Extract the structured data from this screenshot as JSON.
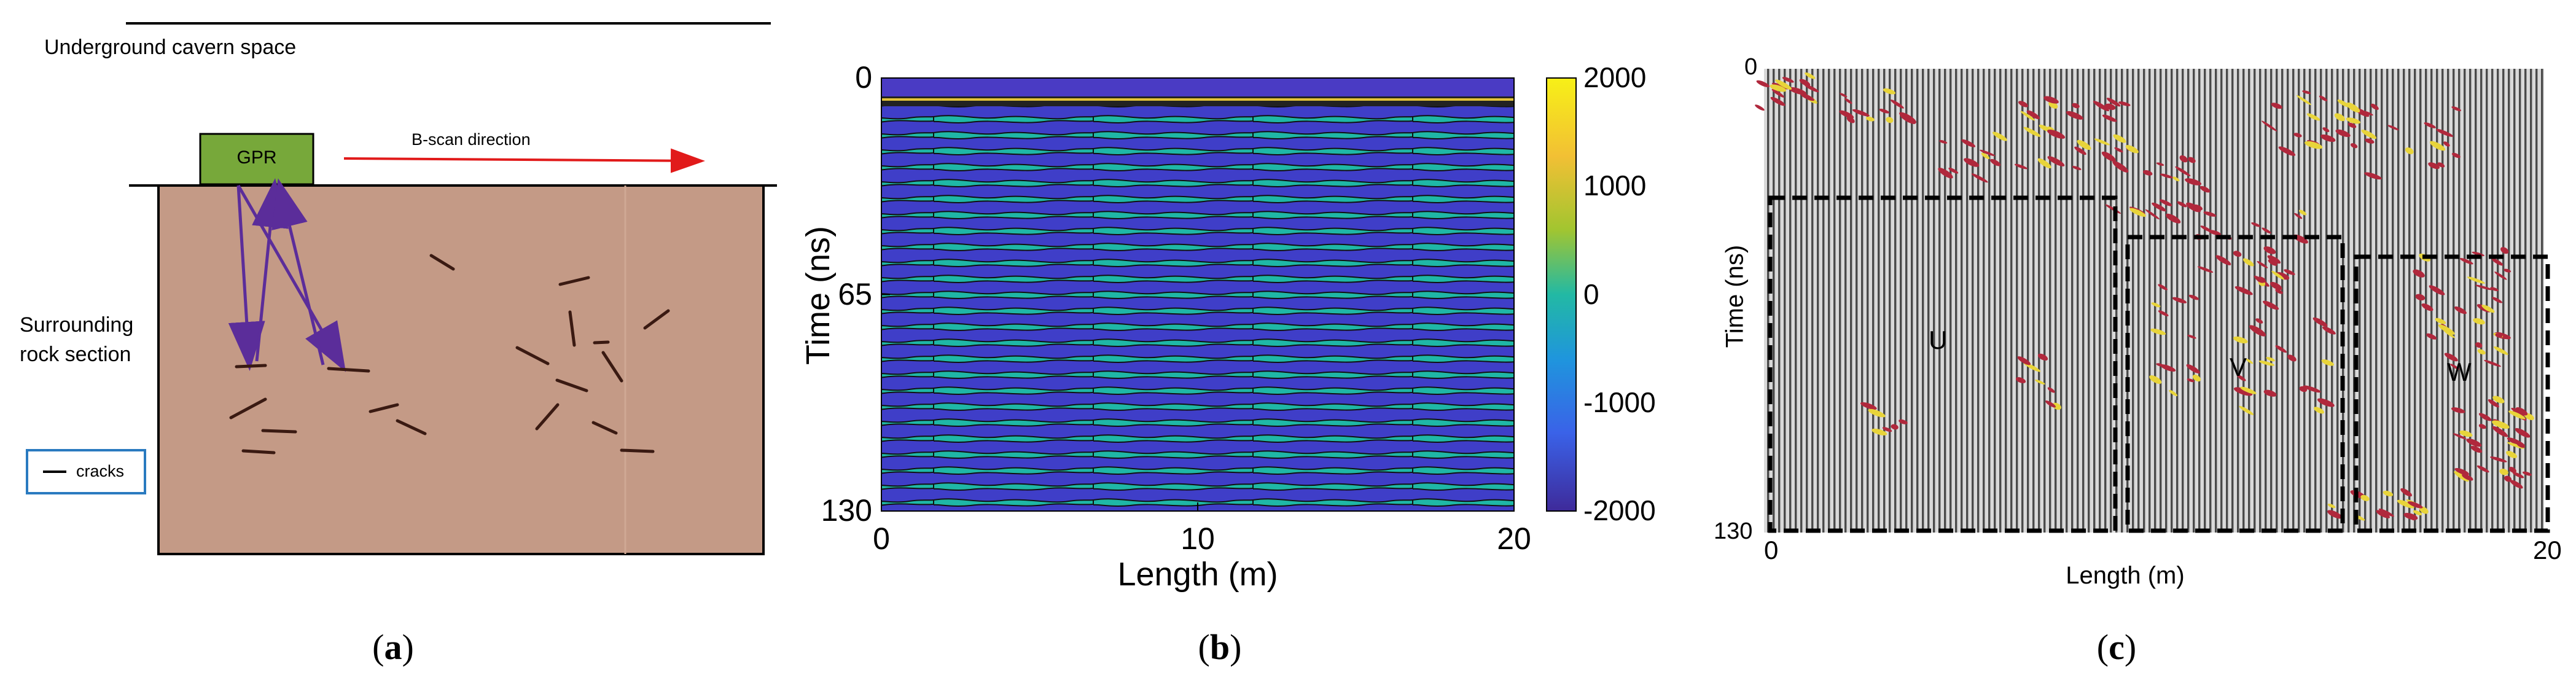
{
  "panel_a": {
    "cavern_label": "Underground cavern space",
    "gpr_label": "GPR",
    "scan_label": "B-scan direction",
    "rock_label_line1": "Surrounding",
    "rock_label_line2": "rock section",
    "legend_label": "cracks",
    "caption_letter": "a",
    "colors": {
      "rock": "#c49a86",
      "gpr_box": "#77a83a",
      "arrow": "#e11a1a",
      "rays": "#5b2d9a",
      "crack": "#3a1a12",
      "legend_border": "#2a7ac0"
    }
  },
  "panel_b": {
    "ylabel": "Time (ns)",
    "xlabel": "Length (m)",
    "x_ticks": [
      "0",
      "10",
      "20"
    ],
    "y_ticks": [
      "0",
      "65",
      "130"
    ],
    "colorbar_ticks": [
      "2000",
      "1000",
      "0",
      "-1000",
      "-2000"
    ],
    "caption_letter": "b",
    "x_range": [
      0,
      20
    ],
    "y_range": [
      0,
      130
    ],
    "c_range": [
      -2000,
      2000
    ]
  },
  "panel_c": {
    "ylabel": "Time (ns)",
    "xlabel": "Length (m)",
    "x_ticks": [
      "0",
      "20"
    ],
    "y_ticks": [
      "0",
      "130"
    ],
    "regions": [
      "U",
      "V",
      "W"
    ],
    "caption_letter": "c",
    "x_range": [
      0,
      20
    ],
    "y_range": [
      0,
      130
    ]
  }
}
